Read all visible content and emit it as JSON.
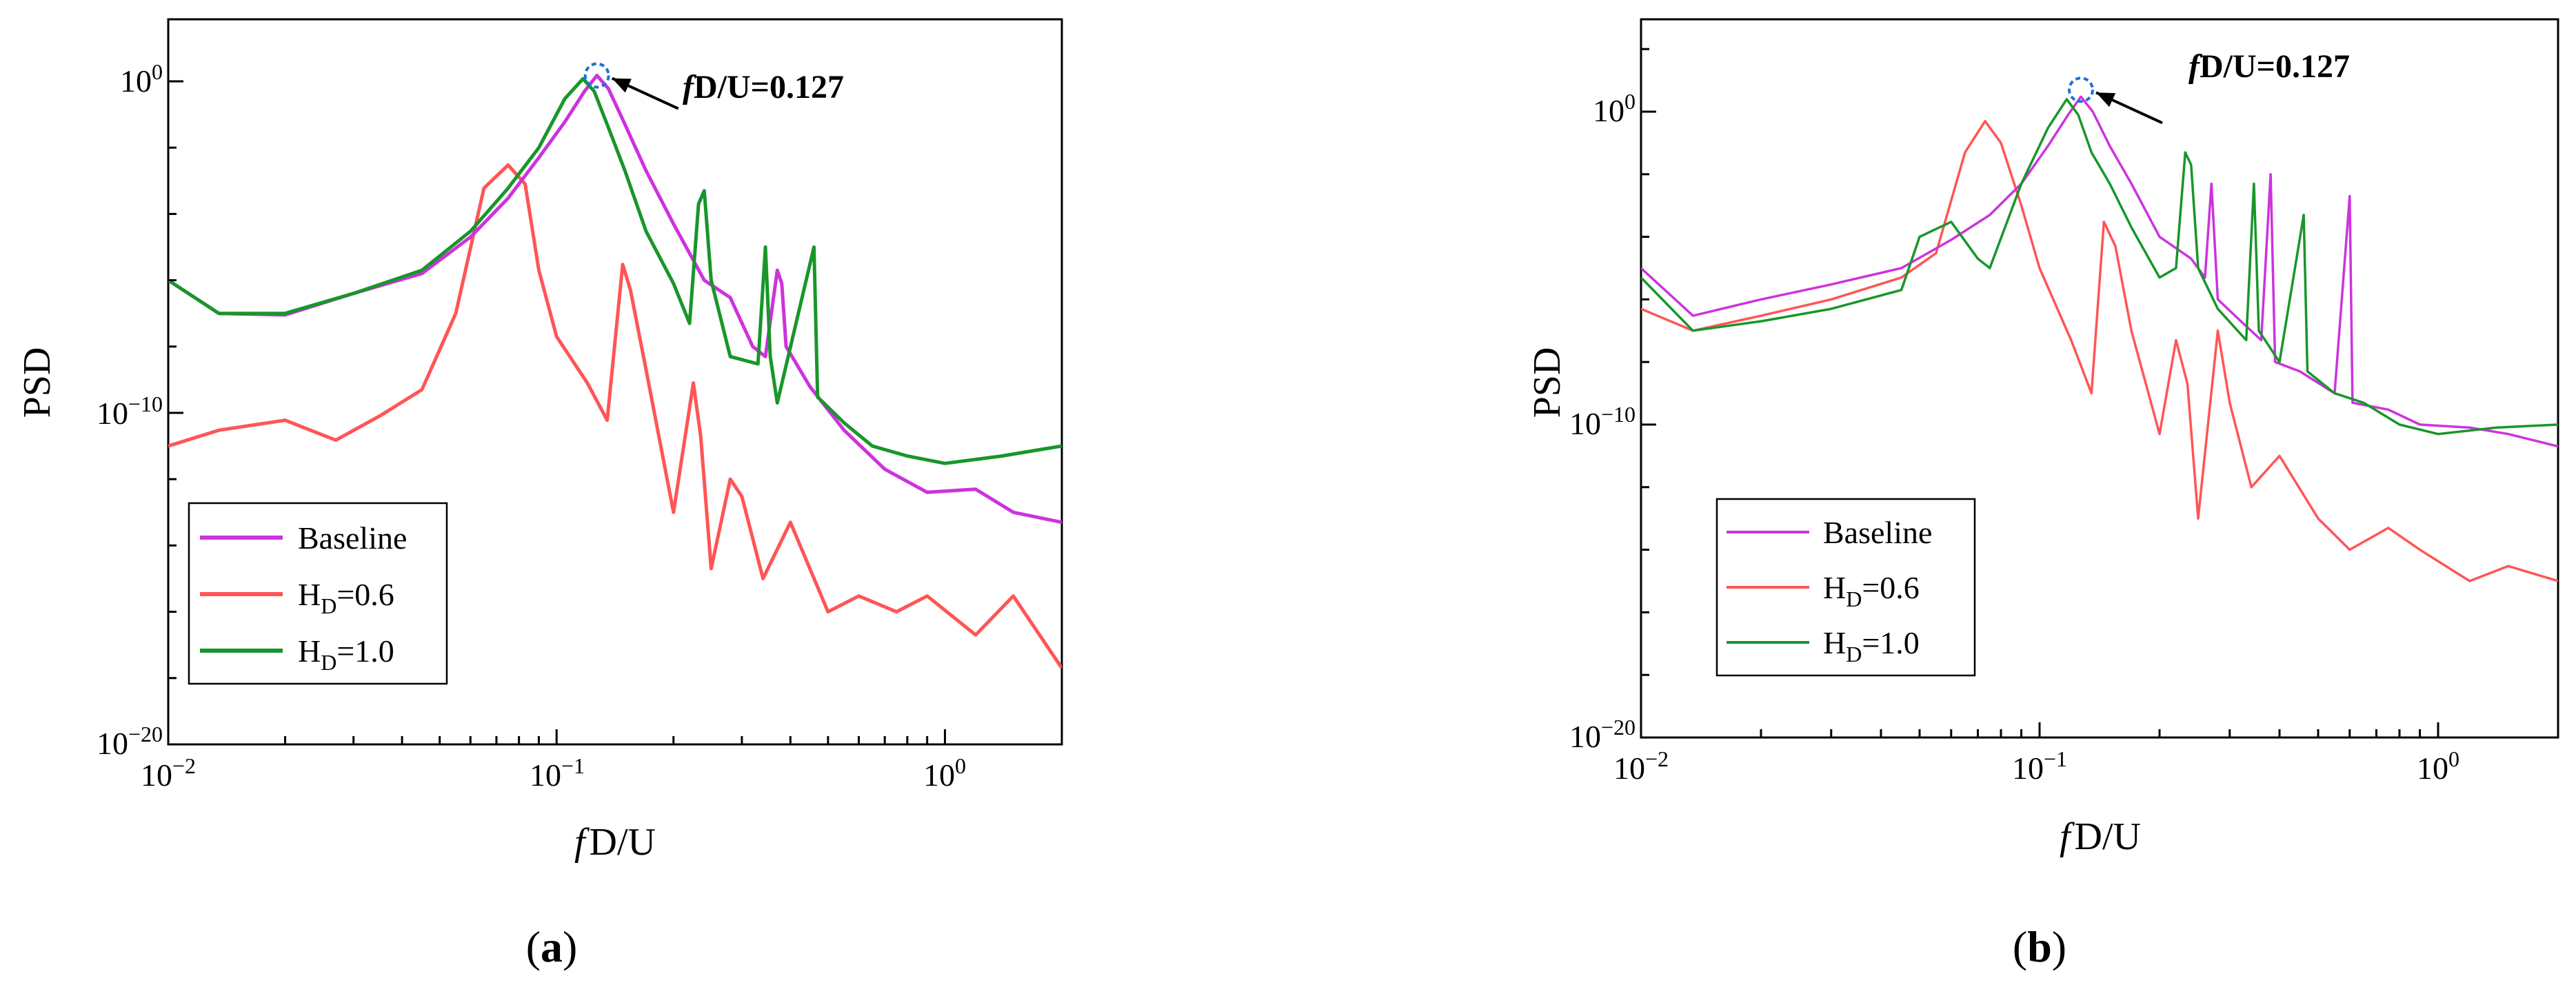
{
  "colors": {
    "baseline": "#cc33dd",
    "hd06": "#ff5555",
    "hd10": "#18962a",
    "marker": "#1e6fd9",
    "axis": "#000000"
  },
  "chart_data": [
    {
      "type": "line",
      "panel": "(a)",
      "panel_letter": "a",
      "xscale": "log",
      "yscale": "log",
      "xlim": [
        0.01,
        2.0
      ],
      "ylim": [
        1e-20,
        100.0
      ],
      "xlabel_italic": "f",
      "xlabel_rest": "D/U",
      "ylabel": "PSD",
      "xticks": [
        {
          "value": 0.01,
          "base": "10",
          "exp": "−2"
        },
        {
          "value": 0.1,
          "base": "10",
          "exp": "−1"
        },
        {
          "value": 1.0,
          "base": "10",
          "exp": "0"
        }
      ],
      "yticks": [
        {
          "value": 1e-20,
          "base": "10",
          "exp": "−20"
        },
        {
          "value": 1e-10,
          "base": "10",
          "exp": "−10"
        },
        {
          "value": 1.0,
          "base": "10",
          "exp": "0"
        }
      ],
      "legend_position": "bottom-left",
      "annotation": {
        "italic": "f",
        "text": "D/U=0.127",
        "x": 0.127,
        "y": 1.5
      },
      "series": [
        {
          "name": "Baseline",
          "legend_base": "Baseline",
          "legend_sub": "",
          "legend_rest": "",
          "points": [
            [
              0.01,
              1e-06
            ],
            [
              0.0135,
              1e-07
            ],
            [
              0.02,
              9e-08
            ],
            [
              0.03,
              4e-07
            ],
            [
              0.045,
              1.6e-06
            ],
            [
              0.06,
              2e-05
            ],
            [
              0.075,
              0.0003
            ],
            [
              0.09,
              0.005
            ],
            [
              0.105,
              0.06
            ],
            [
              0.118,
              0.5
            ],
            [
              0.127,
              1.5
            ],
            [
              0.136,
              0.6
            ],
            [
              0.15,
              0.05
            ],
            [
              0.17,
              0.002
            ],
            [
              0.2,
              5e-05
            ],
            [
              0.24,
              1e-06
            ],
            [
              0.28,
              3e-07
            ],
            [
              0.32,
              1e-08
            ],
            [
              0.345,
              5e-09
            ],
            [
              0.37,
              2e-06
            ],
            [
              0.38,
              8e-07
            ],
            [
              0.39,
              1e-08
            ],
            [
              0.45,
              6e-10
            ],
            [
              0.55,
              3e-11
            ],
            [
              0.7,
              2e-12
            ],
            [
              0.9,
              4e-13
            ],
            [
              1.2,
              5e-13
            ],
            [
              1.5,
              1e-13
            ],
            [
              2.0,
              5e-14
            ]
          ]
        },
        {
          "name": "H_D=0.6",
          "legend_base": "H",
          "legend_sub": "D",
          "legend_rest": "=0.6",
          "points": [
            [
              0.01,
              1e-11
            ],
            [
              0.0135,
              3e-11
            ],
            [
              0.02,
              6e-11
            ],
            [
              0.027,
              1.5e-11
            ],
            [
              0.035,
              8e-11
            ],
            [
              0.045,
              5e-10
            ],
            [
              0.055,
              1e-07
            ],
            [
              0.065,
              0.0006
            ],
            [
              0.075,
              0.003
            ],
            [
              0.083,
              0.0008
            ],
            [
              0.09,
              2e-06
            ],
            [
              0.1,
              2e-08
            ],
            [
              0.12,
              8e-10
            ],
            [
              0.135,
              6e-11
            ],
            [
              0.148,
              3e-06
            ],
            [
              0.155,
              5e-07
            ],
            [
              0.17,
              2e-09
            ],
            [
              0.2,
              1e-13
            ],
            [
              0.225,
              8e-10
            ],
            [
              0.235,
              2e-11
            ],
            [
              0.25,
              2e-15
            ],
            [
              0.28,
              1e-12
            ],
            [
              0.3,
              3e-13
            ],
            [
              0.34,
              1e-15
            ],
            [
              0.4,
              5e-14
            ],
            [
              0.5,
              1e-16
            ],
            [
              0.6,
              3e-16
            ],
            [
              0.75,
              1e-16
            ],
            [
              0.9,
              3e-16
            ],
            [
              1.2,
              2e-17
            ],
            [
              1.5,
              3e-16
            ],
            [
              2.0,
              2e-18
            ]
          ]
        },
        {
          "name": "H_D=1.0",
          "legend_base": "H",
          "legend_sub": "D",
          "legend_rest": "=1.0",
          "points": [
            [
              0.01,
              1e-06
            ],
            [
              0.0135,
              1e-07
            ],
            [
              0.02,
              1e-07
            ],
            [
              0.03,
              4e-07
            ],
            [
              0.045,
              2e-06
            ],
            [
              0.06,
              3e-05
            ],
            [
              0.075,
              0.0006
            ],
            [
              0.09,
              0.01
            ],
            [
              0.105,
              0.3
            ],
            [
              0.117,
              1.2
            ],
            [
              0.125,
              0.5
            ],
            [
              0.135,
              0.05
            ],
            [
              0.15,
              0.002
            ],
            [
              0.17,
              3e-05
            ],
            [
              0.2,
              8e-07
            ],
            [
              0.22,
              5e-08
            ],
            [
              0.232,
              0.0002
            ],
            [
              0.24,
              0.0005
            ],
            [
              0.25,
              1e-06
            ],
            [
              0.28,
              5e-09
            ],
            [
              0.33,
              3e-09
            ],
            [
              0.345,
              1e-05
            ],
            [
              0.355,
              5e-09
            ],
            [
              0.37,
              2e-10
            ],
            [
              0.46,
              1e-05
            ],
            [
              0.47,
              3e-10
            ],
            [
              0.55,
              5e-11
            ],
            [
              0.65,
              1e-11
            ],
            [
              0.8,
              5e-12
            ],
            [
              1.0,
              3e-12
            ],
            [
              1.4,
              5e-12
            ],
            [
              2.0,
              1e-11
            ]
          ]
        }
      ]
    },
    {
      "type": "line",
      "panel": "(b)",
      "panel_letter": "b",
      "xscale": "log",
      "yscale": "log",
      "xlim": [
        0.01,
        2.0
      ],
      "ylim": [
        1e-20,
        100.0
      ],
      "xlabel_italic": "f",
      "xlabel_rest": "D/U",
      "ylabel": "PSD",
      "xticks": [
        {
          "value": 0.01,
          "base": "10",
          "exp": "−2"
        },
        {
          "value": 0.1,
          "base": "10",
          "exp": "−1"
        },
        {
          "value": 1.0,
          "base": "10",
          "exp": "0"
        }
      ],
      "yticks": [
        {
          "value": 1e-20,
          "base": "10",
          "exp": "−20"
        },
        {
          "value": 1e-10,
          "base": "10",
          "exp": "−10"
        },
        {
          "value": 1.0,
          "base": "10",
          "exp": "0"
        }
      ],
      "legend_position": "bottom-left",
      "annotation": {
        "italic": "f",
        "text": "D/U=0.127",
        "x": 0.127,
        "y": 5.0
      },
      "series": [
        {
          "name": "Baseline",
          "legend_base": "Baseline",
          "legend_sub": "",
          "legend_rest": "",
          "points": [
            [
              0.01,
              1e-05
            ],
            [
              0.0135,
              3e-07
            ],
            [
              0.02,
              1e-06
            ],
            [
              0.03,
              3e-06
            ],
            [
              0.045,
              1e-05
            ],
            [
              0.06,
              8e-05
            ],
            [
              0.075,
              0.0005
            ],
            [
              0.09,
              0.005
            ],
            [
              0.105,
              0.08
            ],
            [
              0.118,
              0.8
            ],
            [
              0.127,
              3.0
            ],
            [
              0.136,
              1.0
            ],
            [
              0.15,
              0.08
            ],
            [
              0.17,
              0.005
            ],
            [
              0.2,
              0.0001
            ],
            [
              0.24,
              2e-05
            ],
            [
              0.26,
              5e-06
            ],
            [
              0.27,
              0.005
            ],
            [
              0.28,
              1e-06
            ],
            [
              0.32,
              2e-07
            ],
            [
              0.36,
              5e-08
            ],
            [
              0.38,
              0.01
            ],
            [
              0.39,
              1e-08
            ],
            [
              0.45,
              5e-09
            ],
            [
              0.55,
              1e-09
            ],
            [
              0.6,
              0.002
            ],
            [
              0.61,
              5e-10
            ],
            [
              0.75,
              3e-10
            ],
            [
              0.9,
              1e-10
            ],
            [
              1.2,
              8e-11
            ],
            [
              1.5,
              5e-11
            ],
            [
              2.0,
              2e-11
            ]
          ]
        },
        {
          "name": "H_D=0.6",
          "legend_base": "H",
          "legend_sub": "D",
          "legend_rest": "=0.6",
          "points": [
            [
              0.01,
              5e-07
            ],
            [
              0.0135,
              1e-07
            ],
            [
              0.02,
              3e-07
            ],
            [
              0.03,
              1e-06
            ],
            [
              0.045,
              5e-06
            ],
            [
              0.055,
              3e-05
            ],
            [
              0.065,
              0.05
            ],
            [
              0.073,
              0.5
            ],
            [
              0.08,
              0.1
            ],
            [
              0.09,
              0.001
            ],
            [
              0.1,
              1e-05
            ],
            [
              0.12,
              5e-08
            ],
            [
              0.135,
              1e-09
            ],
            [
              0.145,
              0.0003
            ],
            [
              0.155,
              5e-05
            ],
            [
              0.17,
              1e-07
            ],
            [
              0.2,
              5e-11
            ],
            [
              0.22,
              5e-08
            ],
            [
              0.235,
              2e-09
            ],
            [
              0.25,
              1e-13
            ],
            [
              0.28,
              1e-07
            ],
            [
              0.3,
              5e-10
            ],
            [
              0.34,
              1e-12
            ],
            [
              0.4,
              1e-11
            ],
            [
              0.5,
              1e-13
            ],
            [
              0.6,
              1e-14
            ],
            [
              0.75,
              5e-14
            ],
            [
              0.9,
              1e-14
            ],
            [
              1.2,
              1e-15
            ],
            [
              1.5,
              3e-15
            ],
            [
              2.0,
              1e-15
            ]
          ]
        },
        {
          "name": "H_D=1.0",
          "legend_base": "H",
          "legend_sub": "D",
          "legend_rest": "=1.0",
          "points": [
            [
              0.01,
              5e-06
            ],
            [
              0.0135,
              1e-07
            ],
            [
              0.02,
              2e-07
            ],
            [
              0.03,
              5e-07
            ],
            [
              0.045,
              2e-06
            ],
            [
              0.05,
              0.0001
            ],
            [
              0.06,
              0.0003
            ],
            [
              0.07,
              2e-05
            ],
            [
              0.075,
              1e-05
            ],
            [
              0.09,
              0.005
            ],
            [
              0.105,
              0.3
            ],
            [
              0.117,
              2.5
            ],
            [
              0.125,
              0.8
            ],
            [
              0.135,
              0.05
            ],
            [
              0.15,
              0.005
            ],
            [
              0.17,
              0.0002
            ],
            [
              0.2,
              5e-06
            ],
            [
              0.22,
              1e-05
            ],
            [
              0.232,
              0.05
            ],
            [
              0.24,
              0.02
            ],
            [
              0.25,
              1e-05
            ],
            [
              0.28,
              5e-07
            ],
            [
              0.33,
              5e-08
            ],
            [
              0.345,
              0.005
            ],
            [
              0.355,
              1e-07
            ],
            [
              0.4,
              1e-08
            ],
            [
              0.46,
              0.0005
            ],
            [
              0.47,
              5e-09
            ],
            [
              0.55,
              1e-09
            ],
            [
              0.65,
              5e-10
            ],
            [
              0.8,
              1e-10
            ],
            [
              1.0,
              5e-11
            ],
            [
              1.4,
              8e-11
            ],
            [
              2.0,
              1e-10
            ]
          ]
        }
      ]
    }
  ]
}
